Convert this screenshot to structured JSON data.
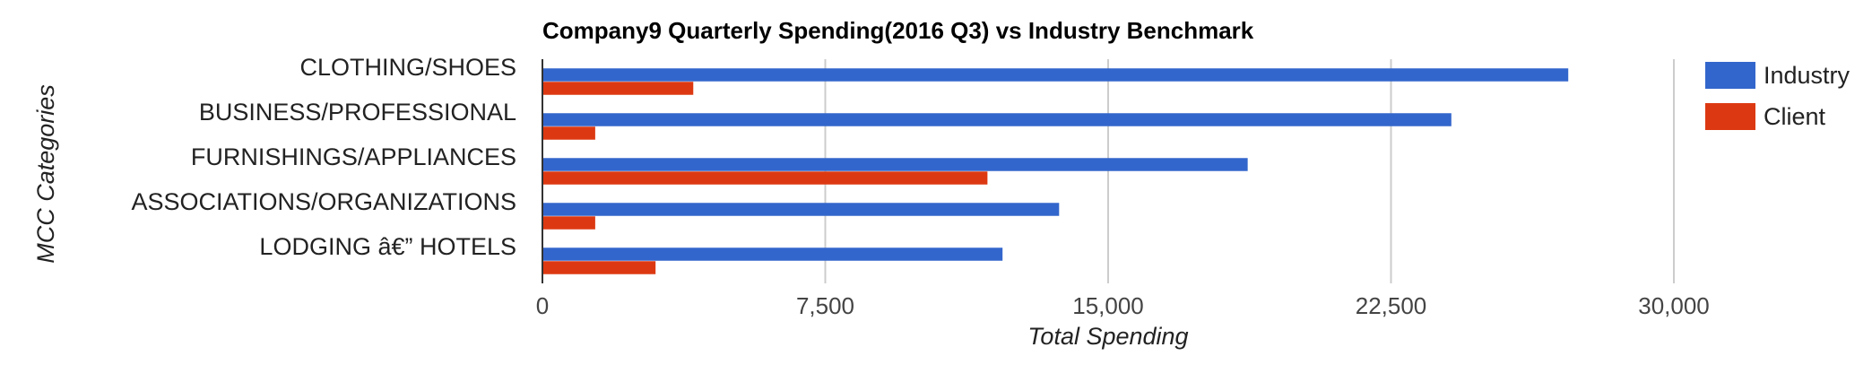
{
  "chart_data": {
    "type": "bar",
    "orientation": "horizontal",
    "title": "Company9 Quarterly Spending(2016 Q3) vs Industry Benchmark",
    "xlabel": "Total Spending",
    "ylabel": "MCC Categories",
    "categories": [
      "CLOTHING/SHOES",
      "BUSINESS/PROFESSIONAL",
      "FURNISHINGS/APPLIANCES",
      "ASSOCIATIONS/ORGANIZATIONS",
      "LODGING â€” HOTELS"
    ],
    "series": [
      {
        "name": "Industry",
        "color": "#3366cc",
        "values": [
          27200,
          24100,
          18700,
          13700,
          12200
        ]
      },
      {
        "name": "Client",
        "color": "#dc3912",
        "values": [
          4000,
          1400,
          11800,
          1400,
          3000
        ]
      }
    ],
    "xlim": [
      0,
      30000
    ],
    "xticks": [
      0,
      7500,
      15000,
      22500,
      30000
    ],
    "xtick_labels": [
      "0",
      "7,500",
      "15,000",
      "22,500",
      "30,000"
    ],
    "grid": true,
    "legend_position": "right"
  }
}
